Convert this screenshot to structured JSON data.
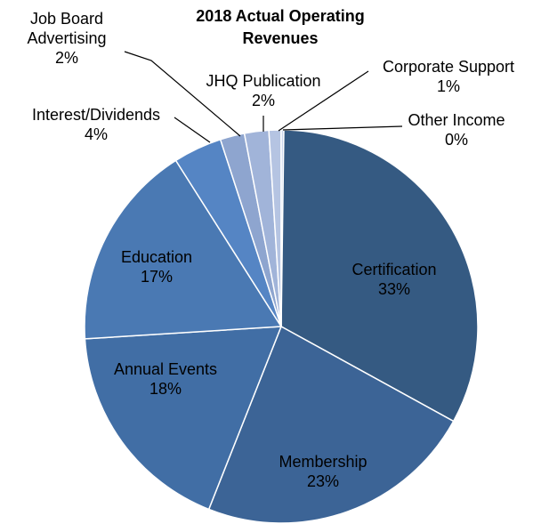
{
  "chart_data": {
    "type": "pie",
    "title": "2018 Actual Operating Revenues",
    "categories": [
      "Certification",
      "Membership",
      "Annual Events",
      "Education",
      "Interest/Dividends",
      "Job Board Advertising",
      "JHQ Publication",
      "Corporate Support",
      "Other Income"
    ],
    "values": [
      33,
      23,
      18,
      17,
      4,
      2,
      2,
      1,
      0
    ],
    "value_labels": [
      "33%",
      "23%",
      "18%",
      "17%",
      "4%",
      "2%",
      "2%",
      "1%",
      "0%"
    ],
    "colors": [
      "#355a82",
      "#3c6496",
      "#416ea5",
      "#4a79b3",
      "#5585c4",
      "#8ea5cf",
      "#a1b4d9",
      "#b5c4e2",
      "#cbd6ec"
    ]
  }
}
